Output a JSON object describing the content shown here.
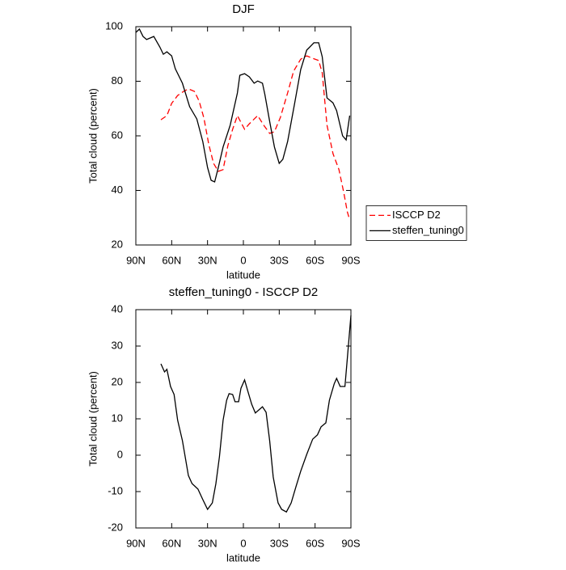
{
  "chart_data": [
    {
      "type": "line",
      "title": "DJF",
      "xlabel": "latitude",
      "ylabel": "Total cloud (percent)",
      "xlim": [
        90,
        -90
      ],
      "ylim": [
        20,
        100
      ],
      "xticks": [
        {
          "value": 90,
          "label": "90N"
        },
        {
          "value": 60,
          "label": "60N"
        },
        {
          "value": 30,
          "label": "30N"
        },
        0,
        {
          "value": -30,
          "label": "30S"
        },
        {
          "value": -60,
          "label": "60S"
        },
        {
          "value": -90,
          "label": "90S"
        }
      ],
      "yticks": [
        20,
        40,
        60,
        80,
        100
      ],
      "legend": "right",
      "series": [
        {
          "name": "ISCCP D2",
          "color": "#ff0000",
          "line_style": "dashed",
          "x": [
            69,
            64,
            60,
            55,
            50,
            46,
            41,
            37,
            33,
            29,
            25,
            21,
            17,
            13,
            9,
            5,
            -1,
            -5,
            -12,
            -17,
            -22,
            -26,
            -31,
            -37,
            -42,
            -48,
            -53,
            -58,
            -63,
            -66,
            -70,
            -75,
            -80,
            -84,
            -87,
            -89
          ],
          "values": [
            65.9,
            67.4,
            71.9,
            74.8,
            76.3,
            77.2,
            76.3,
            72.7,
            66.5,
            57,
            49.9,
            47,
            47.6,
            56.4,
            62.4,
            67.4,
            62.4,
            64.4,
            67.4,
            63.9,
            60.9,
            61.5,
            66.8,
            75.7,
            83.7,
            88.1,
            89.3,
            88.4,
            87.6,
            83.1,
            63.9,
            53.5,
            47.6,
            39.3,
            32.1,
            29.2
          ]
        },
        {
          "name": "steffen_tuning0",
          "color": "#000000",
          "line_style": "solid",
          "x": [
            90,
            87,
            84,
            81,
            75,
            70,
            67,
            64,
            60,
            57,
            51,
            45,
            39,
            34,
            30,
            27,
            24,
            21,
            17,
            11,
            5,
            3,
            -1,
            -5,
            -9,
            -12,
            -16,
            -18,
            -22,
            -26,
            -30,
            -33,
            -37,
            -43,
            -48,
            -53,
            -59,
            -63,
            -66,
            -70,
            -75,
            -78,
            -83,
            -86,
            -89
          ],
          "values": [
            97.9,
            99.1,
            96.4,
            95.3,
            96.4,
            92.6,
            89.9,
            90.8,
            89.3,
            84.6,
            79.3,
            70.7,
            66.2,
            57.9,
            48.4,
            43.7,
            43.1,
            48.4,
            55.9,
            63.9,
            75.7,
            82.2,
            82.8,
            81.6,
            79.3,
            80.1,
            79.3,
            75.1,
            65.3,
            55.9,
            49.9,
            51.4,
            57.9,
            72.1,
            84.3,
            91.4,
            94.1,
            94.1,
            89,
            73.9,
            72.1,
            69.2,
            60,
            58.5,
            67.4
          ]
        }
      ]
    },
    {
      "type": "line",
      "title": "steffen_tuning0 - ISCCP D2",
      "xlabel": "latitude",
      "ylabel": "Total cloud (percent)",
      "xlim": [
        90,
        -90
      ],
      "ylim": [
        -20,
        40
      ],
      "xticks": [
        {
          "value": 90,
          "label": "90N"
        },
        {
          "value": 60,
          "label": "60N"
        },
        {
          "value": 30,
          "label": "30N"
        },
        0,
        {
          "value": -30,
          "label": "30S"
        },
        {
          "value": -60,
          "label": "60S"
        },
        {
          "value": -90,
          "label": "90S"
        }
      ],
      "yticks": [
        -20,
        -10,
        0,
        10,
        20,
        30,
        40
      ],
      "color": "#000000",
      "x": [
        69,
        66,
        64,
        61,
        58,
        55,
        51,
        46,
        43,
        38,
        34,
        30,
        26,
        23,
        20,
        17,
        14,
        12,
        9,
        7,
        4,
        2,
        -1,
        -4,
        -7,
        -10,
        -16,
        -19,
        -22,
        -25,
        -29,
        -32,
        -36,
        -40,
        -44,
        -48,
        -53,
        -58,
        -62,
        -65,
        -69,
        -72,
        -76,
        -78,
        -81,
        -85,
        -87,
        -90
      ],
      "values": [
        25.1,
        22.9,
        23.6,
        18.9,
        16.7,
        9.6,
        4,
        -5.6,
        -7.8,
        -9.3,
        -12.2,
        -14.9,
        -13.1,
        -7.8,
        -0.4,
        9.6,
        15.1,
        16.9,
        16.7,
        14.7,
        14.7,
        18.4,
        20.7,
        17.3,
        14,
        11.6,
        13.3,
        11.8,
        4,
        -6,
        -13.1,
        -14.9,
        -15.6,
        -13.1,
        -8.7,
        -4.4,
        0.2,
        4.4,
        5.6,
        7.8,
        8.9,
        15.1,
        19.6,
        21.1,
        18.9,
        18.9,
        26.7,
        38.4
      ]
    }
  ]
}
